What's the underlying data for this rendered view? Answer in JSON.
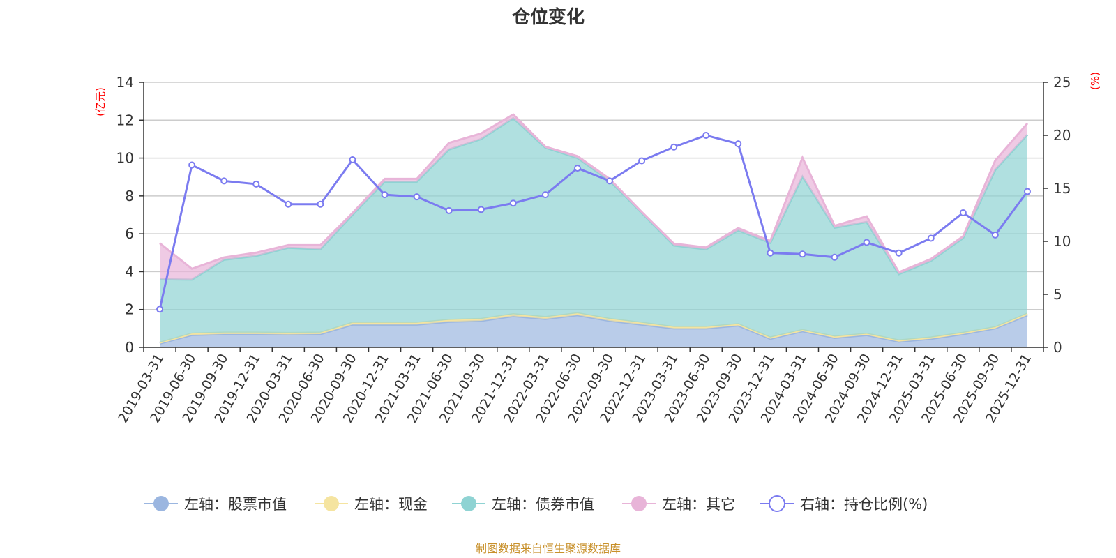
{
  "chart_data": {
    "type": "area",
    "title": "仓位变化",
    "source_note": "制图数据来自恒生聚源数据库",
    "categories": [
      "2019-03-31",
      "2019-06-30",
      "2019-09-30",
      "2019-12-31",
      "2020-03-31",
      "2020-06-30",
      "2020-09-30",
      "2020-12-31",
      "2021-03-31",
      "2021-06-30",
      "2021-09-30",
      "2021-12-31",
      "2022-03-31",
      "2022-06-30",
      "2022-09-30",
      "2022-12-31",
      "2023-03-31",
      "2023-06-30",
      "2023-09-30",
      "2023-12-31",
      "2024-03-31",
      "2024-06-30",
      "2024-09-30",
      "2024-12-31",
      "2025-03-31",
      "2025-06-30",
      "2025-09-30",
      "2025-12-31"
    ],
    "left_axis": {
      "label": "(亿元)",
      "ylim": [
        0,
        14
      ],
      "ticks": [
        "0",
        "2",
        "4",
        "6",
        "8",
        "10",
        "12",
        "14"
      ]
    },
    "right_axis": {
      "label": "(%)",
      "ylim": [
        0,
        25
      ],
      "ticks": [
        "0",
        "5",
        "10",
        "15",
        "20",
        "25"
      ]
    },
    "series": [
      {
        "name": "股票市值",
        "legend": "左轴：股票市值",
        "axis": "left",
        "color": "#9bb6e0",
        "values": [
          0.2,
          0.65,
          0.7,
          0.7,
          0.68,
          0.7,
          1.2,
          1.2,
          1.2,
          1.35,
          1.4,
          1.65,
          1.5,
          1.7,
          1.4,
          1.2,
          1.0,
          1.0,
          1.15,
          0.45,
          0.85,
          0.5,
          0.65,
          0.3,
          0.45,
          0.7,
          1.0,
          1.7
        ]
      },
      {
        "name": "现金",
        "legend": "左轴：现金",
        "axis": "left",
        "color": "#f5e4a0",
        "values": [
          0.05,
          0.08,
          0.08,
          0.08,
          0.08,
          0.08,
          0.1,
          0.1,
          0.1,
          0.1,
          0.1,
          0.1,
          0.1,
          0.1,
          0.1,
          0.1,
          0.08,
          0.08,
          0.08,
          0.07,
          0.07,
          0.07,
          0.07,
          0.07,
          0.07,
          0.07,
          0.07,
          0.08
        ]
      },
      {
        "name": "债券市值",
        "legend": "左轴：债券市值",
        "axis": "left",
        "color": "#8fd3d3",
        "values": [
          3.35,
          2.85,
          3.85,
          4.05,
          4.5,
          4.4,
          5.7,
          7.45,
          7.45,
          9.0,
          9.5,
          10.35,
          8.95,
          8.2,
          7.3,
          5.8,
          4.3,
          4.1,
          4.95,
          5.0,
          8.1,
          5.75,
          5.9,
          3.5,
          4.05,
          5.0,
          8.3,
          9.45
        ]
      },
      {
        "name": "其它",
        "legend": "左轴：其它",
        "axis": "left",
        "color": "#e8b4d8",
        "values": [
          1.9,
          0.57,
          0.12,
          0.17,
          0.14,
          0.22,
          0.1,
          0.15,
          0.15,
          0.35,
          0.3,
          0.2,
          0.05,
          0.1,
          0.1,
          0.05,
          0.1,
          0.1,
          0.12,
          0.1,
          1.0,
          0.1,
          0.3,
          0.1,
          0.1,
          0.1,
          0.5,
          0.6
        ]
      },
      {
        "name": "持仓比例(%)",
        "legend": "右轴：持仓比例(%)",
        "axis": "right",
        "type": "line",
        "color": "#7b7bf0",
        "values": [
          3.6,
          17.2,
          15.7,
          15.4,
          13.5,
          13.5,
          17.7,
          14.4,
          14.2,
          12.9,
          13.0,
          13.6,
          14.4,
          16.9,
          15.7,
          17.6,
          18.9,
          20.0,
          19.2,
          8.9,
          8.8,
          8.5,
          9.9,
          8.9,
          10.3,
          12.7,
          10.6,
          14.7
        ]
      }
    ]
  }
}
